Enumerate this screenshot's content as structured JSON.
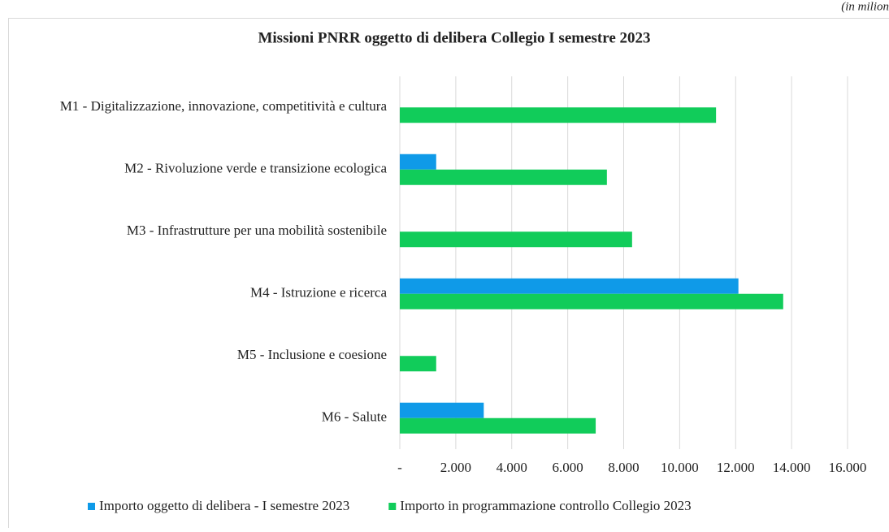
{
  "note_text": "(in milion",
  "chart_data": {
    "type": "hbar",
    "title": "Missioni PNRR oggetto di delibera Collegio I semestre 2023",
    "categories": [
      "M1 - Digitalizzazione, innovazione, competitività e cultura",
      "M2 - Rivoluzione verde e transizione ecologica",
      "M3 - Infrastrutture per una mobilità sostenibile",
      "M4 - Istruzione e ricerca",
      "M5 - Inclusione e coesione",
      "M6 - Salute"
    ],
    "series": [
      {
        "name": "Importo oggetto di delibera - I semestre 2023",
        "color": "#0f9ae8",
        "values": [
          null,
          1300,
          null,
          12100,
          null,
          3000
        ]
      },
      {
        "name": "Importo in programmazione controllo Collegio 2023",
        "color": "#11cc5a",
        "values": [
          11300,
          7400,
          8300,
          13700,
          1300,
          7000
        ]
      }
    ],
    "xlim": [
      0,
      16000
    ],
    "xticks": [
      {
        "value": 0,
        "label": "-"
      },
      {
        "value": 2000,
        "label": "2.000"
      },
      {
        "value": 4000,
        "label": "4.000"
      },
      {
        "value": 6000,
        "label": "6.000"
      },
      {
        "value": 8000,
        "label": "8.000"
      },
      {
        "value": 10000,
        "label": "10.000"
      },
      {
        "value": 12000,
        "label": "12.000"
      },
      {
        "value": 14000,
        "label": "14.000"
      },
      {
        "value": 16000,
        "label": "16.000"
      }
    ],
    "grid": true,
    "legend": "bottom"
  }
}
